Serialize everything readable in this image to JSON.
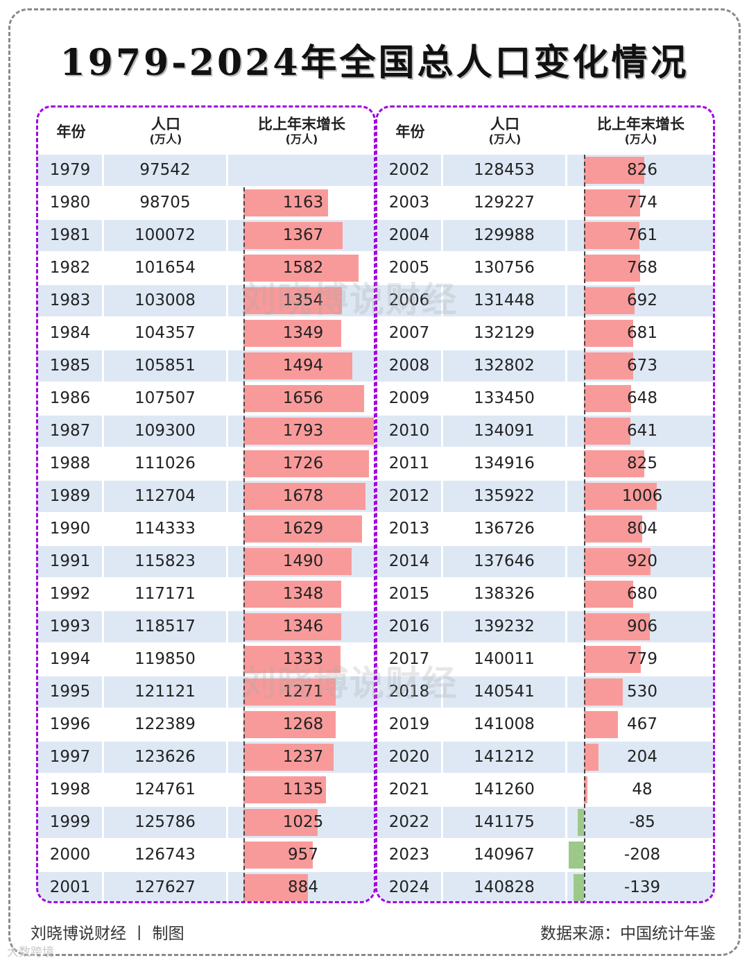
{
  "chart_data": {
    "type": "table",
    "title": "1979-2024年全国总人口变化情况",
    "columns": {
      "year": "年份",
      "population": "人口",
      "population_unit": "(万人)",
      "increase": "比上年末增长",
      "increase_unit": "(万人)"
    },
    "max_abs_increase": 1793,
    "left_rows": [
      {
        "year": "1979",
        "population": "97542",
        "increase": null
      },
      {
        "year": "1980",
        "population": "98705",
        "increase": 1163
      },
      {
        "year": "1981",
        "population": "100072",
        "increase": 1367
      },
      {
        "year": "1982",
        "population": "101654",
        "increase": 1582
      },
      {
        "year": "1983",
        "population": "103008",
        "increase": 1354
      },
      {
        "year": "1984",
        "population": "104357",
        "increase": 1349
      },
      {
        "year": "1985",
        "population": "105851",
        "increase": 1494
      },
      {
        "year": "1986",
        "population": "107507",
        "increase": 1656
      },
      {
        "year": "1987",
        "population": "109300",
        "increase": 1793
      },
      {
        "year": "1988",
        "population": "111026",
        "increase": 1726
      },
      {
        "year": "1989",
        "population": "112704",
        "increase": 1678
      },
      {
        "year": "1990",
        "population": "114333",
        "increase": 1629
      },
      {
        "year": "1991",
        "population": "115823",
        "increase": 1490
      },
      {
        "year": "1992",
        "population": "117171",
        "increase": 1348
      },
      {
        "year": "1993",
        "population": "118517",
        "increase": 1346
      },
      {
        "year": "1994",
        "population": "119850",
        "increase": 1333
      },
      {
        "year": "1995",
        "population": "121121",
        "increase": 1271
      },
      {
        "year": "1996",
        "population": "122389",
        "increase": 1268
      },
      {
        "year": "1997",
        "population": "123626",
        "increase": 1237
      },
      {
        "year": "1998",
        "population": "124761",
        "increase": 1135
      },
      {
        "year": "1999",
        "population": "125786",
        "increase": 1025
      },
      {
        "year": "2000",
        "population": "126743",
        "increase": 957
      },
      {
        "year": "2001",
        "population": "127627",
        "increase": 884
      }
    ],
    "right_rows": [
      {
        "year": "2002",
        "population": "128453",
        "increase": 826
      },
      {
        "year": "2003",
        "population": "129227",
        "increase": 774
      },
      {
        "year": "2004",
        "population": "129988",
        "increase": 761
      },
      {
        "year": "2005",
        "population": "130756",
        "increase": 768
      },
      {
        "year": "2006",
        "population": "131448",
        "increase": 692
      },
      {
        "year": "2007",
        "population": "132129",
        "increase": 681
      },
      {
        "year": "2008",
        "population": "132802",
        "increase": 673
      },
      {
        "year": "2009",
        "population": "133450",
        "increase": 648
      },
      {
        "year": "2010",
        "population": "134091",
        "increase": 641
      },
      {
        "year": "2011",
        "population": "134916",
        "increase": 825
      },
      {
        "year": "2012",
        "population": "135922",
        "increase": 1006
      },
      {
        "year": "2013",
        "population": "136726",
        "increase": 804
      },
      {
        "year": "2014",
        "population": "137646",
        "increase": 920
      },
      {
        "year": "2015",
        "population": "138326",
        "increase": 680
      },
      {
        "year": "2016",
        "population": "139232",
        "increase": 906
      },
      {
        "year": "2017",
        "population": "140011",
        "increase": 779
      },
      {
        "year": "2018",
        "population": "140541",
        "increase": 530
      },
      {
        "year": "2019",
        "population": "141008",
        "increase": 467
      },
      {
        "year": "2020",
        "population": "141212",
        "increase": 204
      },
      {
        "year": "2021",
        "population": "141260",
        "increase": 48
      },
      {
        "year": "2022",
        "population": "141175",
        "increase": -85
      },
      {
        "year": "2023",
        "population": "140967",
        "increase": -208
      },
      {
        "year": "2024",
        "population": "140828",
        "increase": -139
      }
    ],
    "colors": {
      "positive": "#f99a9a",
      "negative": "#9cc98a",
      "row_shade": "#dde8f4",
      "panel_border": "#a100e0"
    }
  },
  "watermark": "刘晓博说财经",
  "footer": {
    "credit": "刘晓博说财经 丨 制图",
    "source": "数据来源：中国统计年鉴"
  },
  "corner_mark": "大数跨境"
}
